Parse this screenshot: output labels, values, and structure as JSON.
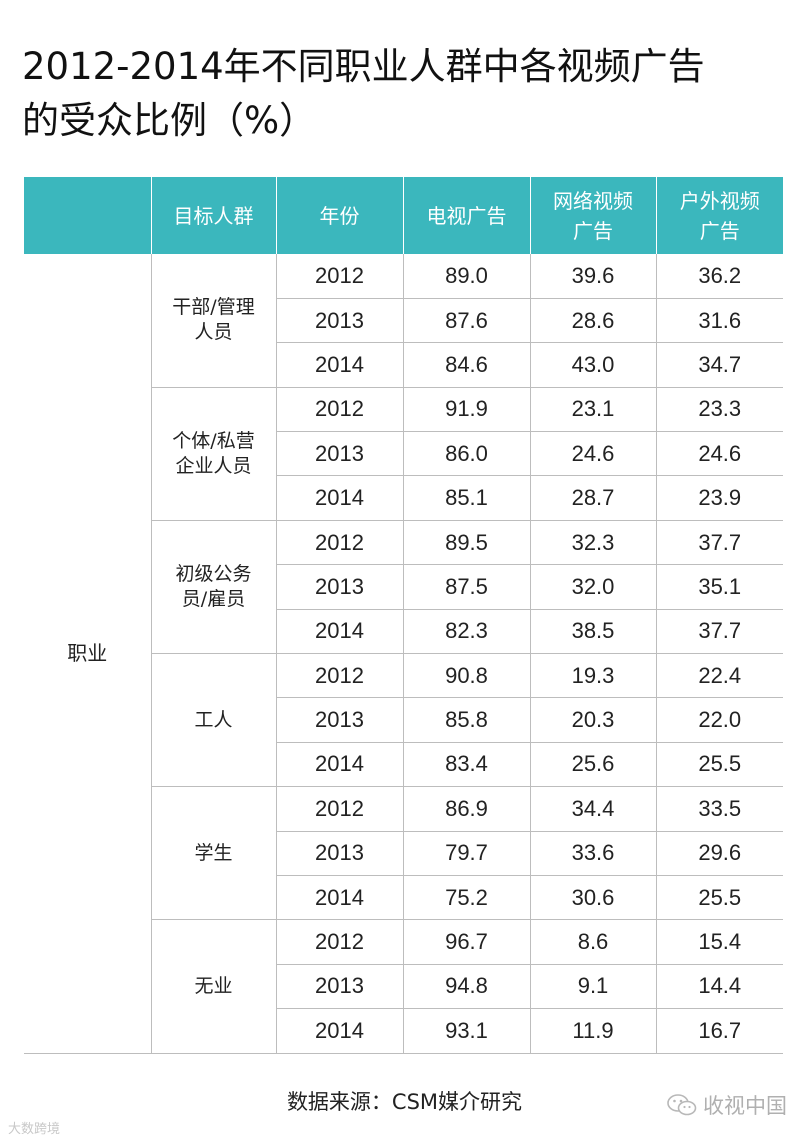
{
  "title_line1": "2012-2014年不同职业人群中各视频广告",
  "title_line2": "的受众比例（%）",
  "chart_data": {
    "type": "table",
    "title": "2012-2014年不同职业人群中各视频广告的受众比例（%）",
    "columns": [
      "",
      "目标人群",
      "年份",
      "电视广告",
      "网络视频广告",
      "户外视频广告"
    ],
    "category": "职业",
    "groups": [
      {
        "name": "干部/管理人员",
        "rows": [
          {
            "year": "2012",
            "tv": "89.0",
            "online": "39.6",
            "outdoor": "36.2"
          },
          {
            "year": "2013",
            "tv": "87.6",
            "online": "28.6",
            "outdoor": "31.6"
          },
          {
            "year": "2014",
            "tv": "84.6",
            "online": "43.0",
            "outdoor": "34.7"
          }
        ]
      },
      {
        "name": "个体/私营企业人员",
        "rows": [
          {
            "year": "2012",
            "tv": "91.9",
            "online": "23.1",
            "outdoor": "23.3"
          },
          {
            "year": "2013",
            "tv": "86.0",
            "online": "24.6",
            "outdoor": "24.6"
          },
          {
            "year": "2014",
            "tv": "85.1",
            "online": "28.7",
            "outdoor": "23.9"
          }
        ]
      },
      {
        "name": "初级公务员/雇员",
        "rows": [
          {
            "year": "2012",
            "tv": "89.5",
            "online": "32.3",
            "outdoor": "37.7"
          },
          {
            "year": "2013",
            "tv": "87.5",
            "online": "32.0",
            "outdoor": "35.1"
          },
          {
            "year": "2014",
            "tv": "82.3",
            "online": "38.5",
            "outdoor": "37.7"
          }
        ]
      },
      {
        "name": "工人",
        "rows": [
          {
            "year": "2012",
            "tv": "90.8",
            "online": "19.3",
            "outdoor": "22.4"
          },
          {
            "year": "2013",
            "tv": "85.8",
            "online": "20.3",
            "outdoor": "22.0"
          },
          {
            "year": "2014",
            "tv": "83.4",
            "online": "25.6",
            "outdoor": "25.5"
          }
        ]
      },
      {
        "name": "学生",
        "rows": [
          {
            "year": "2012",
            "tv": "86.9",
            "online": "34.4",
            "outdoor": "33.5"
          },
          {
            "year": "2013",
            "tv": "79.7",
            "online": "33.6",
            "outdoor": "29.6"
          },
          {
            "year": "2014",
            "tv": "75.2",
            "online": "30.6",
            "outdoor": "25.5"
          }
        ]
      },
      {
        "name": "无业",
        "rows": [
          {
            "year": "2012",
            "tv": "96.7",
            "online": "8.6",
            "outdoor": "15.4"
          },
          {
            "year": "2013",
            "tv": "94.8",
            "online": "9.1",
            "outdoor": "14.4"
          },
          {
            "year": "2014",
            "tv": "93.1",
            "online": "11.9",
            "outdoor": "16.7"
          }
        ]
      }
    ]
  },
  "header": {
    "col0": "",
    "col1": "目标人群",
    "col2": "年份",
    "col3": "电视广告",
    "col4_line1": "网络视频",
    "col4_line2": "广告",
    "col5_line1": "户外视频",
    "col5_line2": "广告"
  },
  "group_labels": [
    [
      "干部/管理",
      "人员"
    ],
    [
      "个体/私营",
      "企业人员"
    ],
    [
      "初级公务",
      "员/雇员"
    ],
    [
      "工人"
    ],
    [
      "学生"
    ],
    [
      "无业"
    ]
  ],
  "source": "数据来源：CSM媒介研究",
  "watermark_left": "大数跨境",
  "watermark_right": "收视中国",
  "colors": {
    "header_bg": "#3bb7bd",
    "header_text": "#ffffff",
    "grid": "#bdbdbd"
  },
  "icons": {
    "watermark_right": "wechat-icon"
  }
}
